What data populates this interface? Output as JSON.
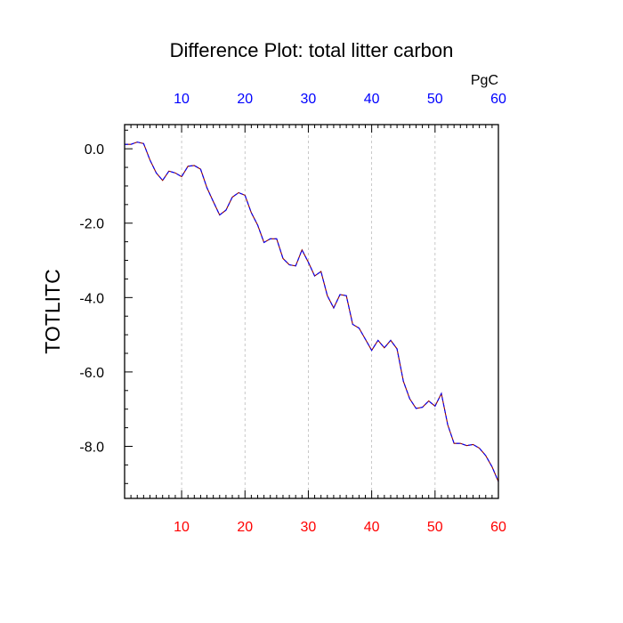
{
  "chart_data": {
    "type": "line",
    "title": "Difference Plot: total litter carbon",
    "ylabel": "TOTLITC",
    "top_axis_unit": "PgC",
    "xlim": [
      1,
      60
    ],
    "ylim": [
      -9.4,
      0.65
    ],
    "x_ticks": [
      10,
      20,
      30,
      40,
      50,
      60
    ],
    "x_tick_labels": [
      "10",
      "20",
      "30",
      "40",
      "50",
      "60"
    ],
    "y_ticks": [
      0,
      -2,
      -4,
      -6,
      -8
    ],
    "y_tick_labels": [
      "0.0",
      "-2.0",
      "-4.0",
      "-6.0",
      "-8.0"
    ],
    "grid": "vertical dashed at major x ticks",
    "colors": {
      "series_dashed": "#0000ff",
      "series_solid": "#8b0000",
      "top_tick_labels": "#0000ff",
      "bottom_tick_labels": "#ff0000",
      "grid": "#bbbbbb"
    },
    "series": [
      {
        "x": [
          1,
          2,
          3,
          4,
          5,
          6,
          7,
          8,
          9,
          10,
          11,
          12,
          13,
          14,
          15,
          16,
          17,
          18,
          19,
          20,
          21,
          22,
          23,
          24,
          25,
          26,
          27,
          28,
          29,
          30,
          31,
          32,
          33,
          34,
          35,
          36,
          37,
          38,
          39,
          40,
          41,
          42,
          43,
          44,
          45,
          46,
          47,
          48,
          49,
          50,
          51,
          52,
          53,
          54,
          55,
          56,
          57,
          58,
          59,
          60
        ],
        "values": [
          0.12,
          0.12,
          0.18,
          0.14,
          -0.3,
          -0.65,
          -0.85,
          -0.6,
          -0.65,
          -0.75,
          -0.47,
          -0.45,
          -0.55,
          -1.05,
          -1.42,
          -1.78,
          -1.65,
          -1.3,
          -1.18,
          -1.25,
          -1.72,
          -2.05,
          -2.52,
          -2.42,
          -2.42,
          -2.95,
          -3.12,
          -3.15,
          -2.72,
          -3.05,
          -3.42,
          -3.3,
          -3.95,
          -4.28,
          -3.92,
          -3.95,
          -4.72,
          -4.82,
          -5.12,
          -5.42,
          -5.15,
          -5.35,
          -5.15,
          -5.38,
          -6.25,
          -6.72,
          -6.98,
          -6.95,
          -6.78,
          -6.92,
          -6.58,
          -7.42,
          -7.92,
          -7.92,
          -7.98,
          -7.95,
          -8.05,
          -8.25,
          -8.55,
          -8.95
        ]
      }
    ]
  }
}
